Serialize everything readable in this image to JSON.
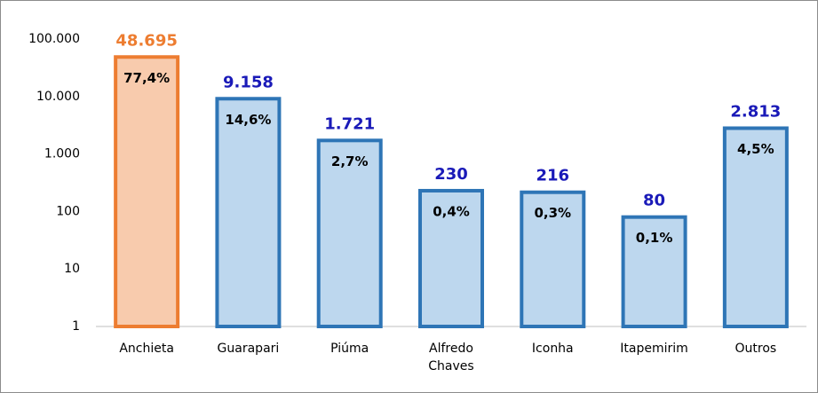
{
  "chart_data": {
    "type": "bar",
    "categories": [
      "Anchieta",
      "Guarapari",
      "Piúma",
      "Alfredo Chaves",
      "Iconha",
      "Itapemirim",
      "Outros"
    ],
    "values": [
      48695,
      9158,
      1721,
      230,
      216,
      80,
      2813
    ],
    "value_labels": [
      "48.695",
      "9.158",
      "1.721",
      "230",
      "216",
      "80",
      "2.813"
    ],
    "percent": {
      "values": [
        77.4,
        14.6,
        2.7,
        0.4,
        0.3,
        0.1,
        4.5
      ],
      "value_labels": [
        "77,4%",
        "14,6%",
        "2,7%",
        "0,4%",
        "0,3%",
        "0,1%",
        "4,5%"
      ]
    },
    "colors": [
      "#f8cbad",
      "#bdd7ee",
      "#bdd7ee",
      "#bdd7ee",
      "#bdd7ee",
      "#bdd7ee",
      "#bdd7ee"
    ],
    "edge_colors": [
      "#ed7d31",
      "#2e75b6",
      "#2e75b6",
      "#2e75b6",
      "#2e75b6",
      "#2e75b6",
      "#2e75b6"
    ],
    "label_colors": [
      "#ed7d31",
      "#1a1ab8",
      "#1a1ab8",
      "#1a1ab8",
      "#1a1ab8",
      "#1a1ab8",
      "#1a1ab8"
    ],
    "log_scale": true,
    "ylim": [
      1,
      100000
    ],
    "yticks": [
      1,
      10,
      100,
      {
        "value": 1000,
        "label": "1.000"
      },
      {
        "value": 10000,
        "label": "10.000"
      },
      {
        "value": 100000,
        "label": "100.000"
      }
    ]
  }
}
